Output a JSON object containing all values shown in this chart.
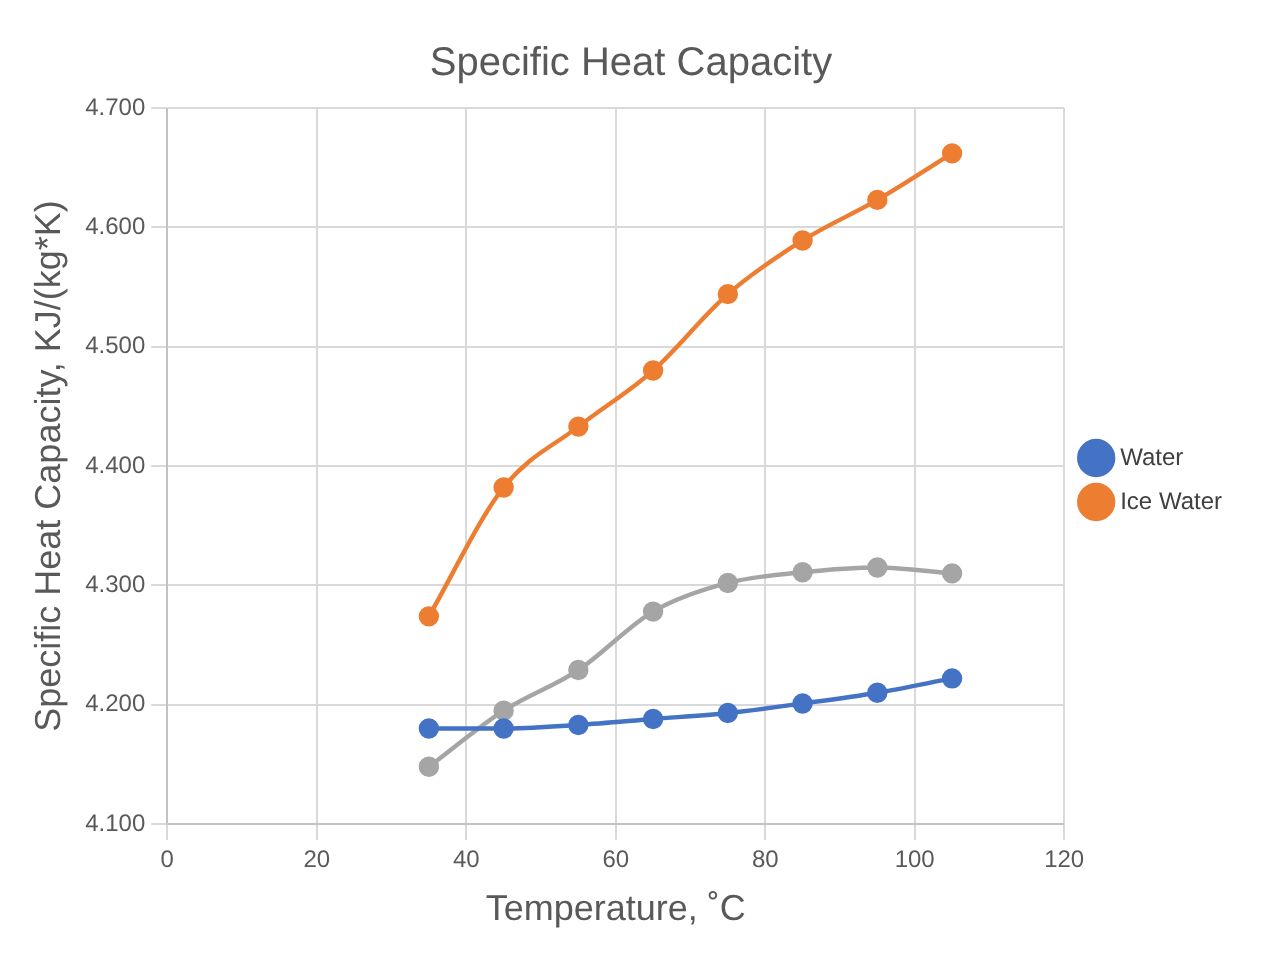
{
  "chart_data": {
    "type": "line",
    "title": "Specific Heat Capacity",
    "xlabel": "Temperature, ˚C",
    "ylabel": "Specific Heat Capacity, KJ/(kg*K)",
    "x": [
      35,
      45,
      55,
      65,
      75,
      85,
      95,
      105
    ],
    "series": [
      {
        "name": "Water",
        "color": "#4472c4",
        "values": [
          4.18,
          4.18,
          4.183,
          4.188,
          4.193,
          4.201,
          4.21,
          4.222
        ]
      },
      {
        "name": "Ice Water",
        "color": "#ed7d31",
        "values": [
          4.274,
          4.382,
          4.433,
          4.48,
          4.544,
          4.589,
          4.623,
          4.662
        ]
      },
      {
        "color": "#a5a5a5",
        "values": [
          4.148,
          4.195,
          4.229,
          4.278,
          4.302,
          4.311,
          4.315,
          4.31
        ]
      }
    ],
    "xlim": [
      0,
      120
    ],
    "xticks": [
      0,
      20,
      40,
      60,
      80,
      100,
      120
    ],
    "ylim": [
      4.1,
      4.7
    ],
    "yticks": [
      {
        "value": 4.1,
        "label": "4.100"
      },
      {
        "value": 4.2,
        "label": "4.200"
      },
      {
        "value": 4.3,
        "label": "4.300"
      },
      {
        "value": 4.4,
        "label": "4.400"
      },
      {
        "value": 4.5,
        "label": "4.500"
      },
      {
        "value": 4.6,
        "label": "4.600"
      },
      {
        "value": 4.7,
        "label": "4.700"
      }
    ],
    "grid": true,
    "legend": "right",
    "marker": "circle",
    "line_style": "solid"
  }
}
